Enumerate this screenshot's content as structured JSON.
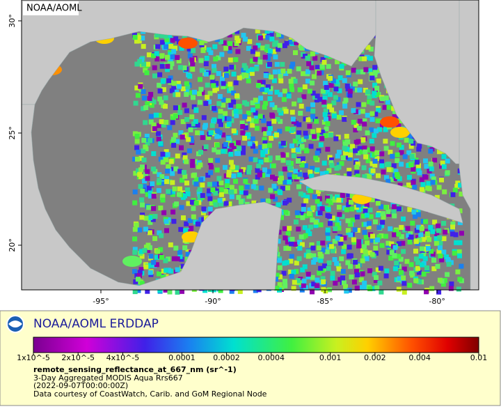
{
  "map": {
    "corner_label": "NOAA/AOML",
    "xlim": [
      -98.54,
      -78.14
    ],
    "ylim": [
      18.01,
      30.93
    ],
    "xticks": [
      {
        "value": -95,
        "label": "-95°"
      },
      {
        "value": -90,
        "label": "-90°"
      },
      {
        "value": -85,
        "label": "-85°"
      },
      {
        "value": -80,
        "label": "-80°"
      }
    ],
    "yticks": [
      {
        "value": 20,
        "label": "20°"
      },
      {
        "value": 25,
        "label": "25°"
      },
      {
        "value": 30,
        "label": "30°"
      }
    ]
  },
  "legend": {
    "title": "NOAA/AOML ERDDAP",
    "colorbar": {
      "scale": "log",
      "lim": [
        1e-05,
        0.01
      ],
      "ticks": [
        {
          "value": 1e-05,
          "label": "1x10^-5"
        },
        {
          "value": 2e-05,
          "label": "2x10^-5"
        },
        {
          "value": 4e-05,
          "label": "4x10^-5"
        },
        0.0001,
        0.0002,
        0.0004,
        0.001,
        0.002,
        0.004,
        0.01
      ]
    },
    "variable": "remote_sensing_reflectance_at_667_nm (sr^-1)",
    "lines": [
      "3-Day Aggregated MODIS Aqua Rrs667",
      "(2022-09-07T00:00:00Z)",
      "Data courtesy of CoastWatch, Carib. and GoM Regional Node"
    ]
  }
}
